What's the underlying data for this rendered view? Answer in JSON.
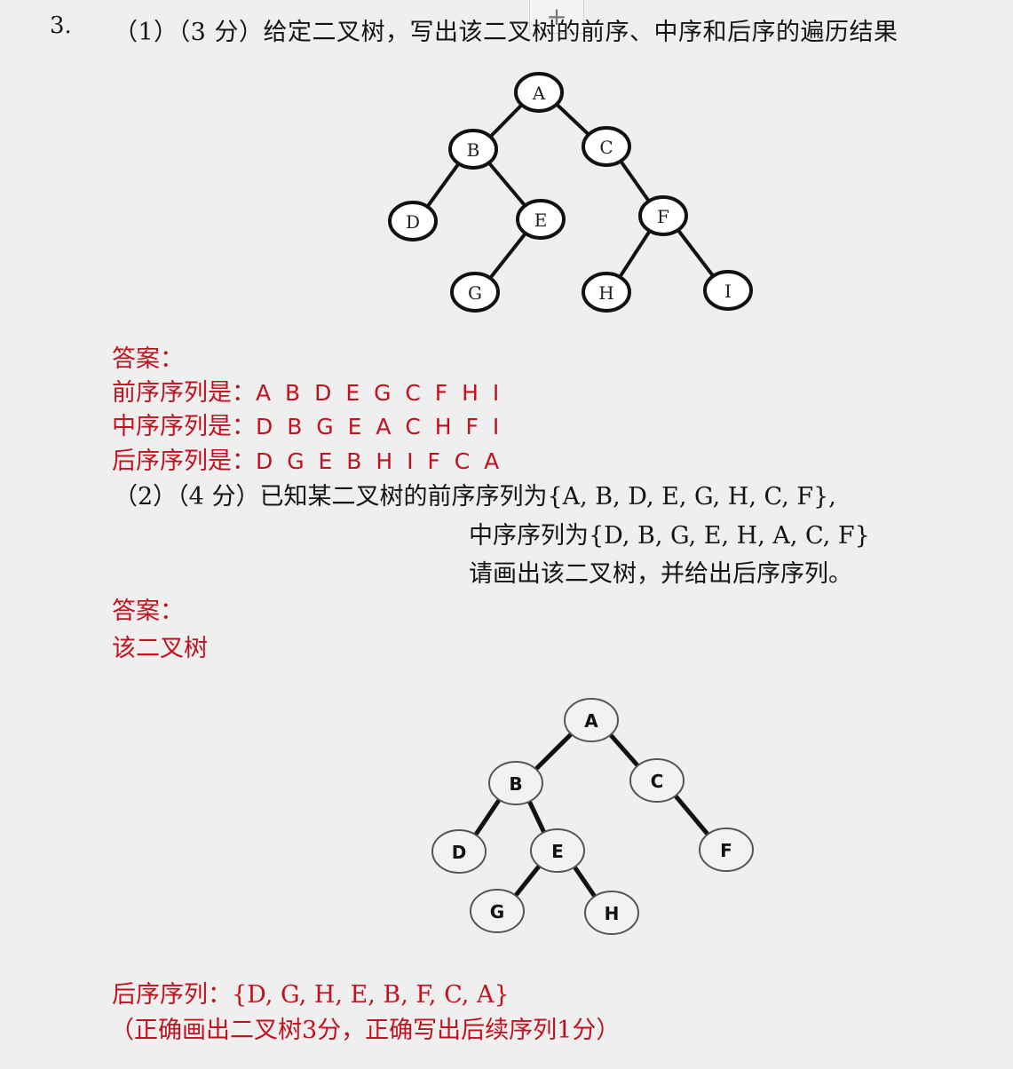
{
  "question": {
    "number": "3.",
    "part1_text": "（1）（3 分）给定二叉树，写出该二叉树的前序、中序和后序的遍历结果",
    "add_tab_icon": "plus-icon"
  },
  "tree1": {
    "nodes": [
      "A",
      "B",
      "C",
      "D",
      "E",
      "F",
      "G",
      "H",
      "I"
    ],
    "edges": [
      [
        "A",
        "B"
      ],
      [
        "A",
        "C"
      ],
      [
        "B",
        "D"
      ],
      [
        "B",
        "E"
      ],
      [
        "E",
        "G"
      ],
      [
        "C",
        "F"
      ],
      [
        "F",
        "H"
      ],
      [
        "F",
        "I"
      ]
    ]
  },
  "answer1": {
    "label": "答案：",
    "preorder_label": "前序序列是：",
    "preorder_value": "A B D E G C F H I",
    "inorder_label": "中序序列是：",
    "inorder_value": "D B G E A C H F I",
    "postorder_label": "后序序列是：",
    "postorder_value": "D G E B H I F C A"
  },
  "part2": {
    "line1": "（2）（4 分）已知某二叉树的前序序列为{A, B, D, E, G, H, C, F},",
    "line2": "中序序列为{D, B, G, E, H, A, C, F}",
    "line3": "请画出该二叉树，并给出后序序列。"
  },
  "answer2": {
    "label": "答案：",
    "tree_label": "该二叉树",
    "postorder_line": "后序序列：{D, G, H, E, B, F, C, A}",
    "scoring_note": "（正确画出二叉树3分，正确写出后续序列1分）"
  },
  "tree2": {
    "nodes": [
      "A",
      "B",
      "C",
      "D",
      "E",
      "F",
      "G",
      "H"
    ],
    "edges": [
      [
        "A",
        "B"
      ],
      [
        "A",
        "C"
      ],
      [
        "B",
        "D"
      ],
      [
        "B",
        "E"
      ],
      [
        "E",
        "G"
      ],
      [
        "E",
        "H"
      ],
      [
        "C",
        "F"
      ]
    ]
  },
  "colors": {
    "background": "#efefef",
    "text": "#141414",
    "answer": "#c1121f"
  }
}
